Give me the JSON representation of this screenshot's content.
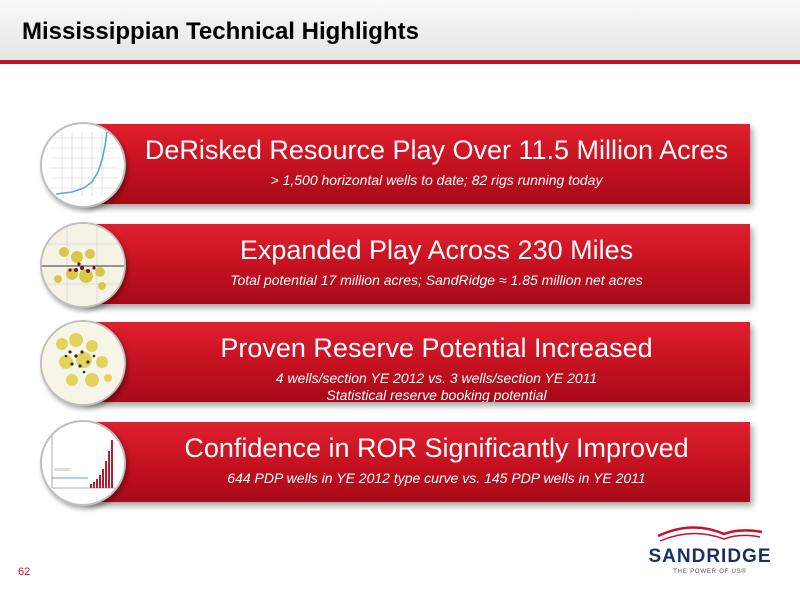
{
  "slide": {
    "title": "Mississippian Technical Highlights",
    "page_number": "62",
    "accent_color": "#c8102e"
  },
  "highlights": [
    {
      "headline": "DeRisked Resource Play Over 11.5 Million Acres",
      "details": [
        "> 1,500 horizontal wells to date; 82 rigs running today"
      ],
      "thumbnail_icon": "cumulative-line-chart-thumbnail"
    },
    {
      "headline": "Expanded Play Across 230 Miles",
      "details": [
        "Total potential 17 million acres; SandRidge ≈ 1.85 million net acres"
      ],
      "thumbnail_icon": "acreage-map-thumbnail"
    },
    {
      "headline": "Proven Reserve Potential Increased",
      "details": [
        "4 wells/section YE 2012 vs. 3 wells/section YE 2011",
        "Statistical reserve booking potential"
      ],
      "thumbnail_icon": "well-map-thumbnail"
    },
    {
      "headline": "Confidence in ROR Significantly Improved",
      "details": [
        "644 PDP wells in YE 2012 type curve vs. 145 PDP wells in YE 2011"
      ],
      "thumbnail_icon": "bar-chart-thumbnail"
    }
  ],
  "logo": {
    "name": "SANDRIDGE",
    "tagline": "THE POWER OF US®"
  }
}
